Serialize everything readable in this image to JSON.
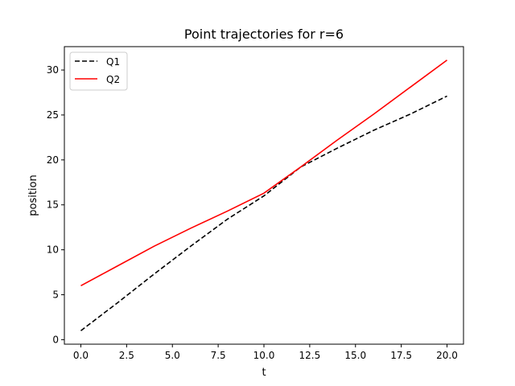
{
  "chart_data": {
    "type": "line",
    "title": "Point trajectories for r=6",
    "xlabel": "t",
    "ylabel": "position",
    "xlim": [
      -0.9,
      20.9
    ],
    "ylim": [
      -0.5,
      32.6
    ],
    "xticks": [
      0.0,
      2.5,
      5.0,
      7.5,
      10.0,
      12.5,
      15.0,
      17.5,
      20.0
    ],
    "xtick_labels": [
      "0.0",
      "2.5",
      "5.0",
      "7.5",
      "10.0",
      "12.5",
      "15.0",
      "17.5",
      "20.0"
    ],
    "yticks": [
      0,
      5,
      10,
      15,
      20,
      25,
      30
    ],
    "ytick_labels": [
      "0",
      "5",
      "10",
      "15",
      "20",
      "25",
      "30"
    ],
    "grid": false,
    "legend_position": "top-left",
    "series": [
      {
        "name": "Q1",
        "color": "#000000",
        "style": "dashed",
        "x": [
          0,
          2,
          4,
          6,
          8,
          10,
          12,
          14,
          16,
          18,
          20
        ],
        "y": [
          1,
          4.1,
          7.3,
          10.4,
          13.4,
          16.0,
          19.2,
          21.3,
          23.3,
          25.1,
          27.1
        ]
      },
      {
        "name": "Q2",
        "color": "#ff0000",
        "style": "solid",
        "x": [
          0,
          2,
          4,
          6,
          8,
          10,
          12,
          14,
          16,
          18,
          20
        ],
        "y": [
          6,
          8.2,
          10.4,
          12.4,
          14.3,
          16.3,
          19.2,
          22.2,
          25.1,
          28.1,
          31.1
        ]
      }
    ]
  }
}
